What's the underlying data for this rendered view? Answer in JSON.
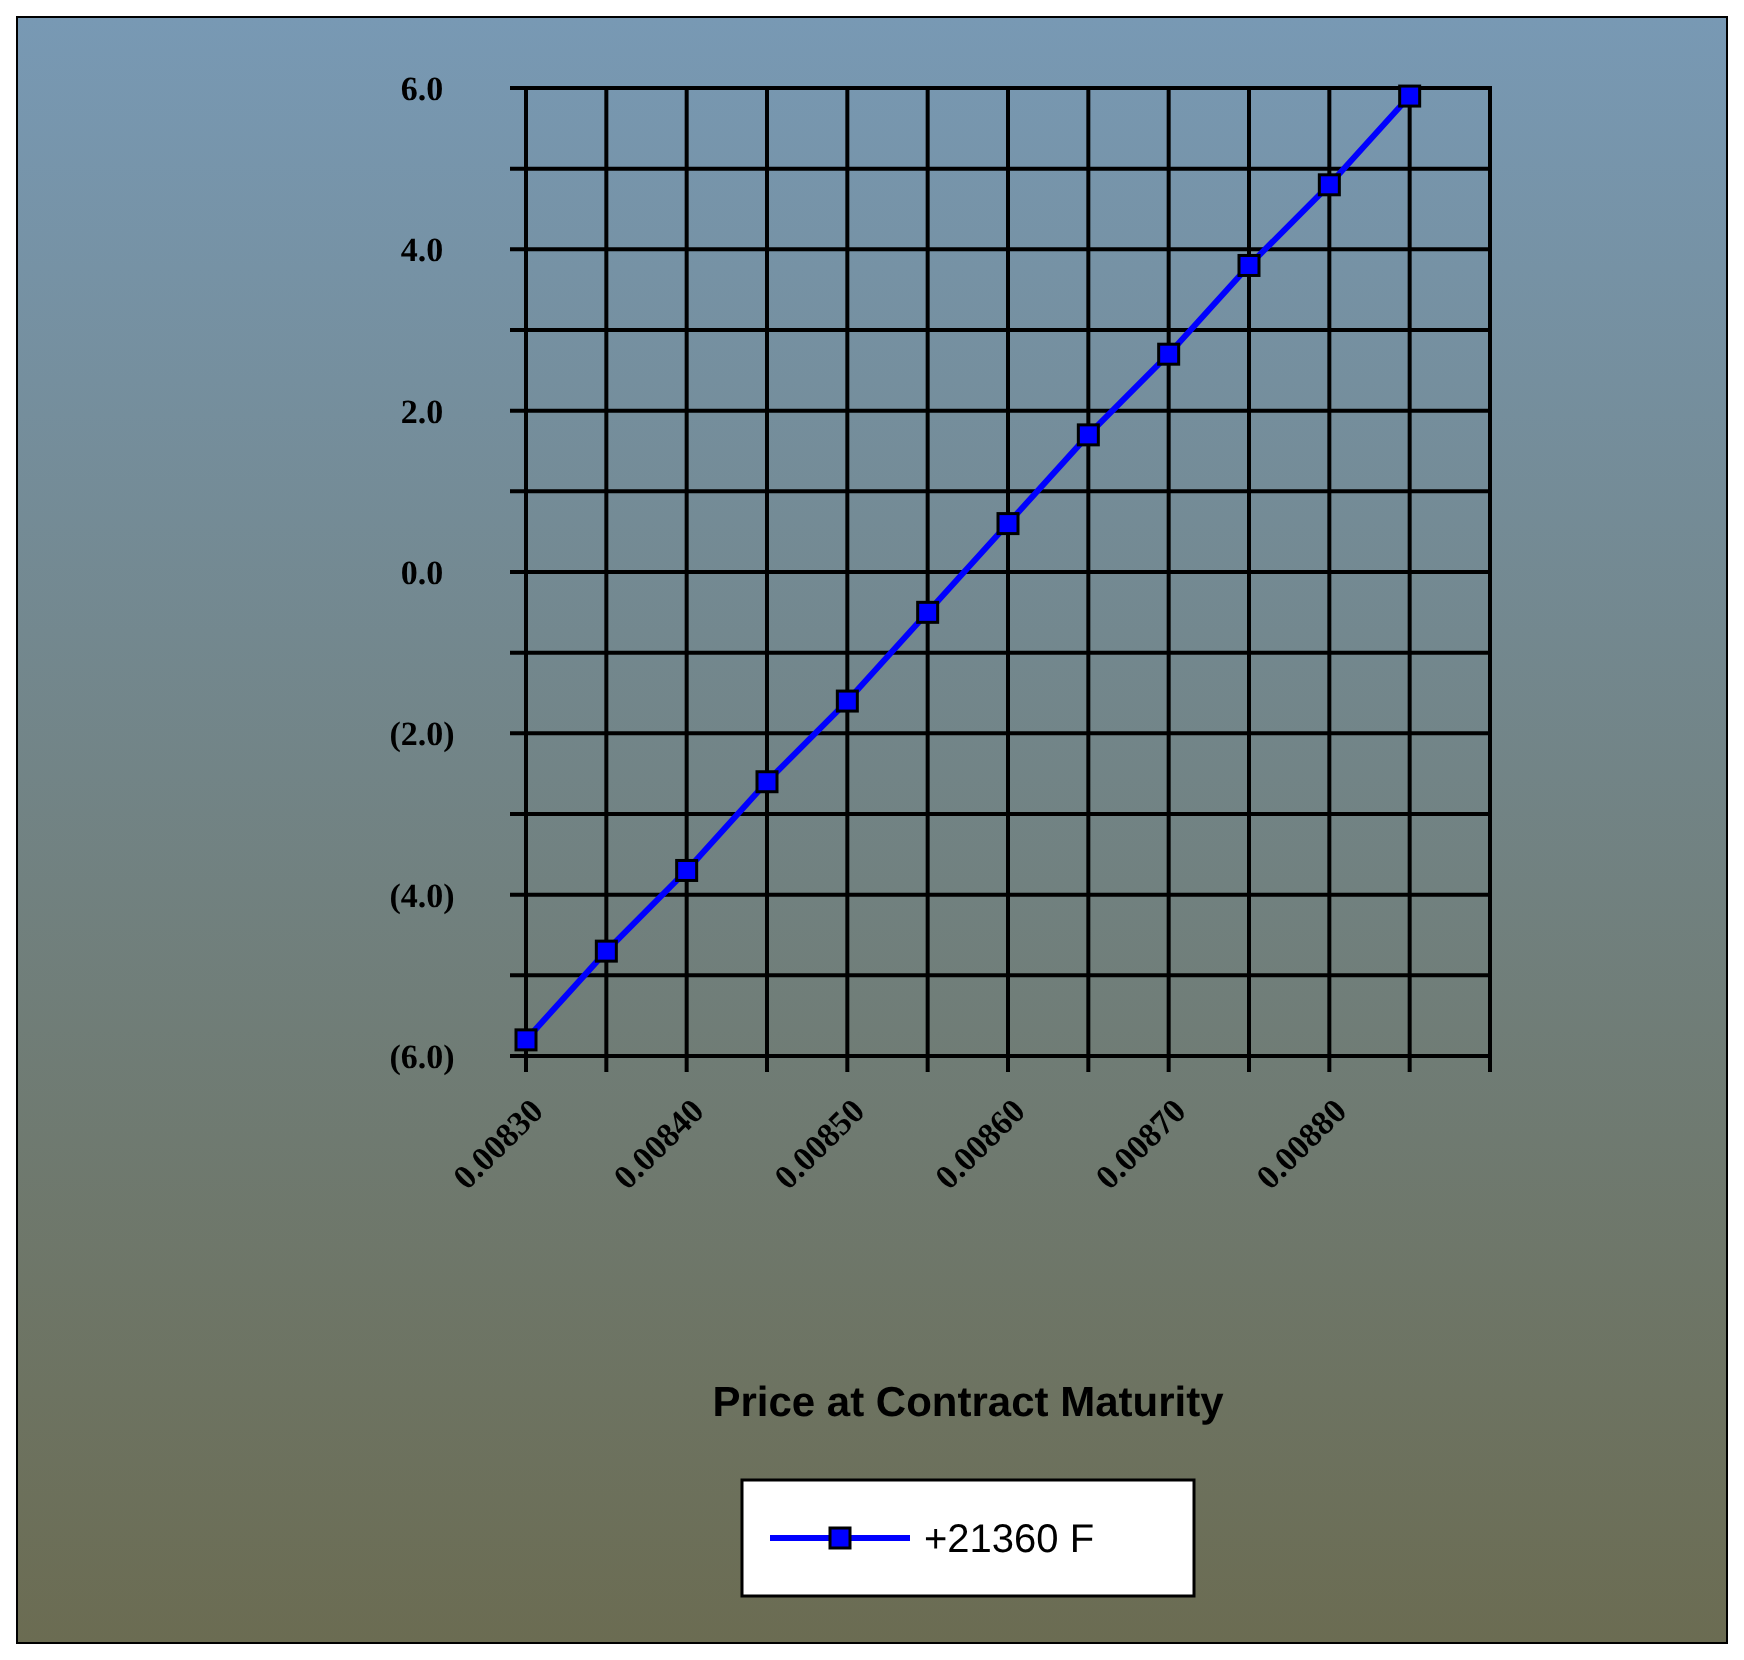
{
  "chart_data": {
    "type": "line",
    "xlabel": "Price at Contract Maturity",
    "x": [
      0.0083,
      0.00835,
      0.0084,
      0.00845,
      0.0085,
      0.00855,
      0.0086,
      0.00865,
      0.0087,
      0.00875,
      0.0088,
      0.00885
    ],
    "series": [
      {
        "name": "+21360 F",
        "color": "#0000ff",
        "values": [
          -5.8,
          -4.7,
          -3.7,
          -2.6,
          -1.6,
          -0.5,
          0.6,
          1.7,
          2.7,
          3.8,
          4.8,
          5.9
        ]
      }
    ],
    "xlim": [
      0.0083,
      0.0089
    ],
    "xticks": [
      {
        "value": 0.0083,
        "label": "0.00830"
      },
      {
        "value": 0.00835,
        "label": null
      },
      {
        "value": 0.0084,
        "label": "0.00840"
      },
      {
        "value": 0.00845,
        "label": null
      },
      {
        "value": 0.0085,
        "label": "0.00850"
      },
      {
        "value": 0.00855,
        "label": null
      },
      {
        "value": 0.0086,
        "label": "0.00860"
      },
      {
        "value": 0.00865,
        "label": null
      },
      {
        "value": 0.0087,
        "label": "0.00870"
      },
      {
        "value": 0.00875,
        "label": null
      },
      {
        "value": 0.0088,
        "label": "0.00880"
      },
      {
        "value": 0.00885,
        "label": null
      },
      {
        "value": 0.0089,
        "label": null
      }
    ],
    "ylim": [
      -6,
      6
    ],
    "yticks": [
      {
        "value": -6,
        "label": "(6.0)"
      },
      {
        "value": -5,
        "label": null
      },
      {
        "value": -4,
        "label": "(4.0)"
      },
      {
        "value": -3,
        "label": null
      },
      {
        "value": -2,
        "label": "(2.0)"
      },
      {
        "value": -1,
        "label": null
      },
      {
        "value": 0,
        "label": "0.0"
      },
      {
        "value": 1,
        "label": null
      },
      {
        "value": 2,
        "label": "2.0"
      },
      {
        "value": 3,
        "label": null
      },
      {
        "value": 4,
        "label": "4.0"
      },
      {
        "value": 5,
        "label": null
      },
      {
        "value": 6,
        "label": "6.0"
      }
    ],
    "grid": true,
    "legend": "bottom",
    "marker": "square",
    "line_style": "solid"
  }
}
